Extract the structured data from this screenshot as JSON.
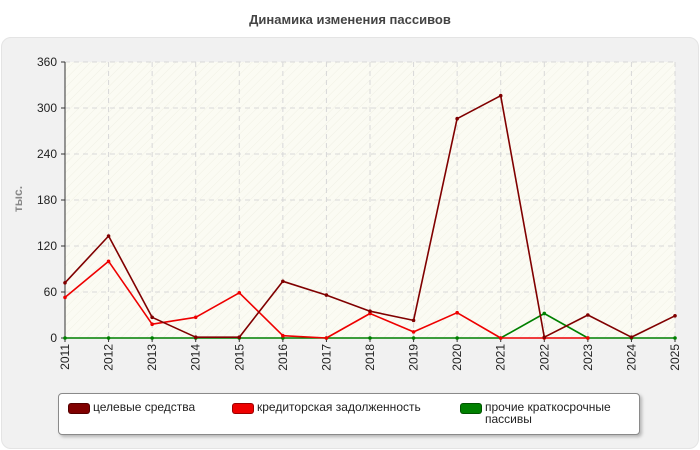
{
  "chart_data": {
    "type": "line",
    "title": "Динамика изменения пассивов",
    "ylabel": "тыс.",
    "xlabel": "",
    "categories": [
      "2011",
      "2012",
      "2013",
      "2014",
      "2015",
      "2016",
      "2017",
      "2018",
      "2019",
      "2020",
      "2021",
      "2022",
      "2023",
      "2024",
      "2025"
    ],
    "ylim": [
      0,
      360
    ],
    "yticks": [
      "0",
      "60",
      "120",
      "180",
      "240",
      "300",
      "360"
    ],
    "grid": true,
    "legend_position": "bottom",
    "series": [
      {
        "name": "целевые средства",
        "color": "#800000",
        "values": [
          72,
          133,
          27,
          1,
          1,
          74,
          56,
          35,
          23,
          286,
          316,
          1,
          30,
          1,
          29
        ]
      },
      {
        "name": "кредиторская задолженность",
        "color": "#ee0000",
        "values": [
          53,
          100,
          18,
          27,
          59,
          3,
          0,
          32,
          8,
          33,
          0,
          0,
          0,
          null,
          null
        ]
      },
      {
        "name": "прочие краткосрочные пассивы",
        "color": "#008000",
        "values": [
          0,
          0,
          0,
          0,
          0,
          0,
          0,
          0,
          0,
          0,
          0,
          32,
          0,
          0,
          0
        ]
      }
    ]
  }
}
